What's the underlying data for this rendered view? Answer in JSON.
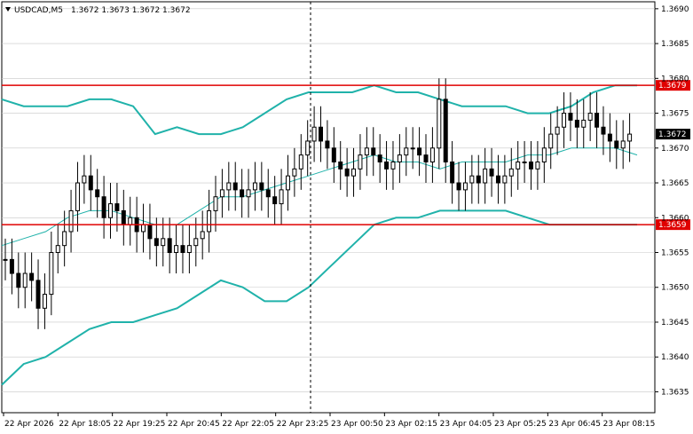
{
  "header": {
    "symbol_tf": "USDCAD,M5",
    "ohlc": "1.3672 1.3673 1.3672 1.3672"
  },
  "colors": {
    "bg": "#ffffff",
    "grid": "#c8c8c8",
    "candle": "#000000",
    "band": "#20b2aa",
    "level": "#e00000",
    "bid": "#000000"
  },
  "chart_data": {
    "type": "candlestick",
    "ylim": [
      1.3632,
      1.3691
    ],
    "y_ticks": [
      "1.3690",
      "1.3685",
      "1.3680",
      "1.3675",
      "1.3670",
      "1.3665",
      "1.3660",
      "1.3655",
      "1.3650",
      "1.3645",
      "1.3640",
      "1.3635"
    ],
    "x_ticks": [
      "22 Apr 2026",
      "22 Apr 18:05",
      "22 Apr 19:25",
      "22 Apr 20:45",
      "22 Apr 22:05",
      "22 Apr 23:25",
      "23 Apr 00:50",
      "23 Apr 02:15",
      "23 Apr 04:05",
      "23 Apr 05:25",
      "23 Apr 06:45",
      "23 Apr 08:15"
    ],
    "levels": [
      {
        "label": "1.3679",
        "value": 1.3679
      },
      {
        "label": "1.3659",
        "value": 1.3659
      }
    ],
    "bid": {
      "label": "1.3672",
      "value": 1.3672
    },
    "candles_close": [
      1.3654,
      1.3652,
      1.365,
      1.3652,
      1.3651,
      1.3647,
      1.3649,
      1.3655,
      1.3656,
      1.3658,
      1.3661,
      1.3665,
      1.3666,
      1.3664,
      1.3663,
      1.366,
      1.3662,
      1.3661,
      1.3659,
      1.366,
      1.3658,
      1.3659,
      1.3657,
      1.3656,
      1.3657,
      1.3655,
      1.3656,
      1.3655,
      1.3656,
      1.3657,
      1.3658,
      1.3661,
      1.3663,
      1.3664,
      1.3665,
      1.3664,
      1.3663,
      1.3664,
      1.3665,
      1.3664,
      1.3663,
      1.3662,
      1.3664,
      1.3666,
      1.3667,
      1.3669,
      1.3671,
      1.3673,
      1.3671,
      1.367,
      1.3668,
      1.3667,
      1.3666,
      1.3667,
      1.3669,
      1.367,
      1.3669,
      1.3668,
      1.3667,
      1.3668,
      1.3669,
      1.367,
      1.367,
      1.3669,
      1.3668,
      1.367,
      1.3677,
      1.3668,
      1.3665,
      1.3664,
      1.3665,
      1.3666,
      1.3665,
      1.3667,
      1.3666,
      1.3665,
      1.3666,
      1.3667,
      1.3668,
      1.3668,
      1.3667,
      1.3668,
      1.367,
      1.3672,
      1.3673,
      1.3675,
      1.3674,
      1.3673,
      1.3674,
      1.3675,
      1.3673,
      1.3672,
      1.3671,
      1.367,
      1.3671,
      1.3672
    ],
    "bands": {
      "upper": [
        1.3677,
        1.3676,
        1.3676,
        1.3676,
        1.3677,
        1.3677,
        1.3676,
        1.3672,
        1.3673,
        1.3672,
        1.3672,
        1.3673,
        1.3675,
        1.3677,
        1.3678,
        1.3678,
        1.3678,
        1.3679,
        1.3678,
        1.3678,
        1.3677,
        1.3676,
        1.3676,
        1.3676,
        1.3675,
        1.3675,
        1.3676,
        1.3678,
        1.3679,
        1.3679
      ],
      "middle": [
        1.3656,
        1.3657,
        1.3658,
        1.366,
        1.3661,
        1.3661,
        1.366,
        1.3659,
        1.3659,
        1.3661,
        1.3663,
        1.3663,
        1.3664,
        1.3665,
        1.3666,
        1.3667,
        1.3668,
        1.3669,
        1.3668,
        1.3668,
        1.3667,
        1.3668,
        1.3668,
        1.3668,
        1.3669,
        1.3669,
        1.367,
        1.367,
        1.367,
        1.3669
      ],
      "lower": [
        1.3636,
        1.3639,
        1.364,
        1.3642,
        1.3644,
        1.3645,
        1.3645,
        1.3646,
        1.3647,
        1.3649,
        1.3651,
        1.365,
        1.3648,
        1.3648,
        1.365,
        1.3653,
        1.3656,
        1.3659,
        1.366,
        1.366,
        1.3661,
        1.3661,
        1.3661,
        1.3661,
        1.366,
        1.3659,
        1.3659,
        1.3659,
        1.3659,
        1.3659
      ]
    }
  }
}
